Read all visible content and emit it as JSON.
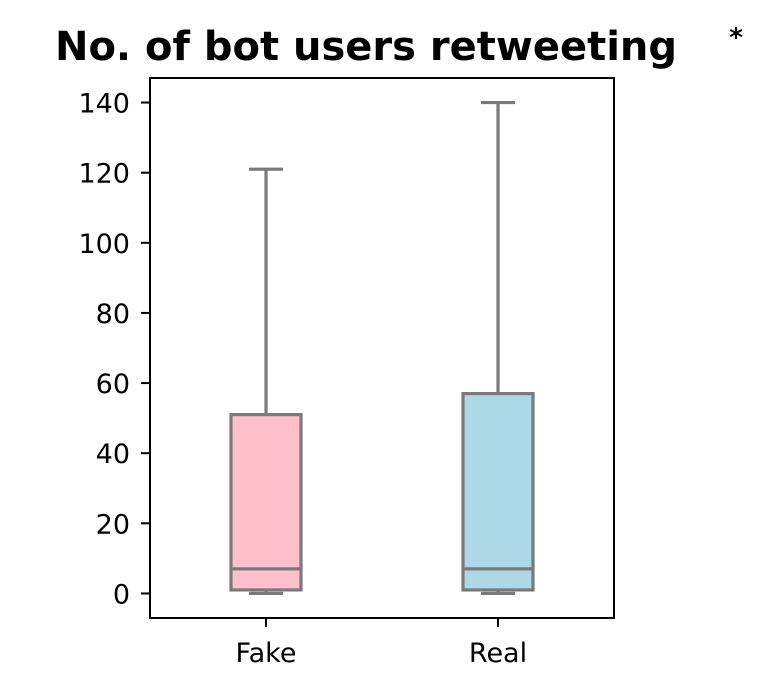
{
  "chart_data": {
    "type": "box",
    "title": "No. of bot users retweeting",
    "title_marker": "*",
    "xlabel": "",
    "ylabel": "",
    "categories": [
      "Fake",
      "Real"
    ],
    "boxes": [
      {
        "name": "Fake",
        "min": 0,
        "q1": 1,
        "median": 7,
        "q3": 51,
        "max": 121,
        "color": "#FFC0CB"
      },
      {
        "name": "Real",
        "min": 0,
        "q1": 1,
        "median": 7,
        "q3": 57,
        "max": 140,
        "color": "#ADD8E6"
      }
    ],
    "ylim": [
      -7,
      147
    ],
    "yticks": [
      0,
      20,
      40,
      60,
      80,
      100,
      120,
      140
    ],
    "line_color": "#7a7a7a",
    "grid": false,
    "legend": "none"
  }
}
